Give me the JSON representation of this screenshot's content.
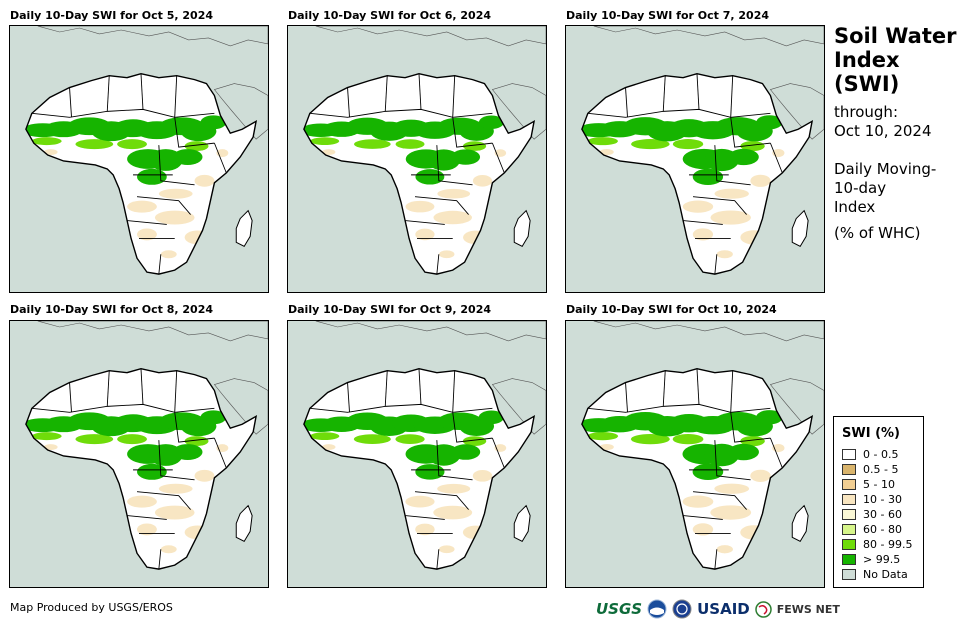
{
  "panels": [
    {
      "title": "Daily 10-Day SWI for Oct 5, 2024",
      "green_extent": 1.0
    },
    {
      "title": "Daily 10-Day SWI for Oct 6, 2024",
      "green_extent": 0.97
    },
    {
      "title": "Daily 10-Day SWI for Oct 7, 2024",
      "green_extent": 1.02
    },
    {
      "title": "Daily 10-Day SWI for Oct 8, 2024",
      "green_extent": 1.0
    },
    {
      "title": "Daily 10-Day SWI for Oct 9, 2024",
      "green_extent": 0.98
    },
    {
      "title": "Daily 10-Day SWI for Oct 10, 2024",
      "green_extent": 1.03
    }
  ],
  "side_title": {
    "line1": "Soil Water",
    "line2": "Index",
    "line3": "(SWI)",
    "through_label": "through:",
    "through_date": "Oct 10, 2024",
    "desc1": "Daily Moving-",
    "desc2": "10-day",
    "desc3": "Index",
    "units": "(% of WHC)"
  },
  "legend": {
    "title": "SWI (%)",
    "items": [
      {
        "label": "0 - 0.5",
        "color": "#ffffff"
      },
      {
        "label": "0.5 - 5",
        "color": "#d9b46c"
      },
      {
        "label": "5 - 10",
        "color": "#f2cf93"
      },
      {
        "label": "10 - 30",
        "color": "#f8e5c0"
      },
      {
        "label": "30 - 60",
        "color": "#fbf8d6"
      },
      {
        "label": "60 - 80",
        "color": "#d6f58a"
      },
      {
        "label": "80 - 99.5",
        "color": "#6fdc0a"
      },
      {
        "label": "> 99.5",
        "color": "#16b400"
      },
      {
        "label": "No Data",
        "color": "#cfddd7"
      }
    ]
  },
  "credit": "Map Produced by USGS/EROS",
  "logos": {
    "usgs": "USGS",
    "usaid": "USAID",
    "fews": "FEWS NET"
  },
  "colors": {
    "ocean": "#cfddd7",
    "land": "#ffffff",
    "dry": "#f8e5c0",
    "green": "#16b400",
    "lightgreen": "#6fdc0a"
  }
}
